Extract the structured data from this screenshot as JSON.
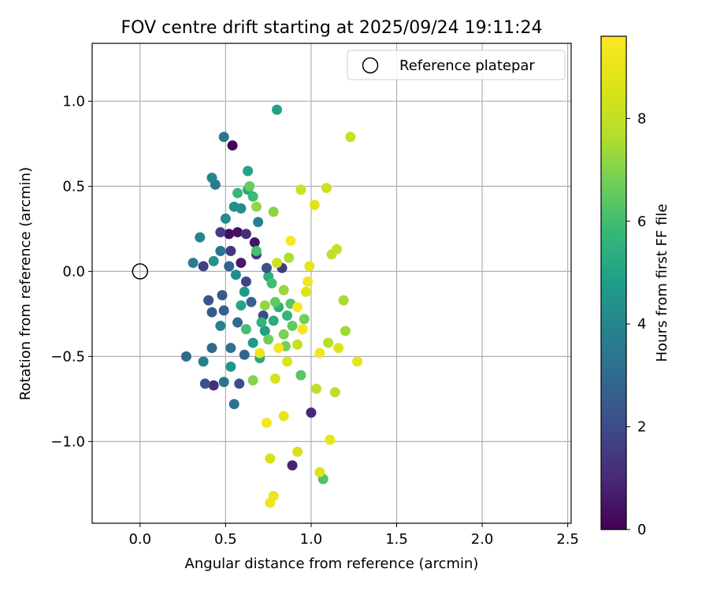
{
  "chart_data": {
    "type": "scatter",
    "title": "FOV centre drift starting at 2025/09/24 19:11:24",
    "xlabel": "Angular distance from reference (arcmin)",
    "ylabel": "Rotation from reference (arcmin)",
    "xlim": [
      -0.28,
      2.52
    ],
    "ylim": [
      -1.48,
      1.34
    ],
    "xticks": [
      0.0,
      0.5,
      1.0,
      1.5,
      2.0,
      2.5
    ],
    "xtick_labels": [
      "0.0",
      "0.5",
      "1.0",
      "1.5",
      "2.0",
      "2.5"
    ],
    "yticks": [
      -1.0,
      -0.5,
      0.0,
      0.5,
      1.0
    ],
    "ytick_labels": [
      "−1.0",
      "−0.5",
      "0.0",
      "0.5",
      "1.0"
    ],
    "grid": true,
    "legend": {
      "position": "top-right",
      "entries": [
        "Reference platepar"
      ]
    },
    "reference_point": {
      "x": 0.0,
      "y": 0.0
    },
    "colorbar": {
      "label": "Hours from first FF file",
      "range": [
        0,
        9.6
      ],
      "ticks": [
        0,
        2,
        4,
        6,
        8
      ],
      "tick_labels": [
        "0",
        "2",
        "4",
        "6",
        "8"
      ],
      "colormap": "viridis"
    },
    "points": [
      [
        0.54,
        0.74,
        0.1
      ],
      [
        0.52,
        0.22,
        0.3
      ],
      [
        0.57,
        0.23,
        0.4
      ],
      [
        0.67,
        0.17,
        0.5
      ],
      [
        0.59,
        0.05,
        0.6
      ],
      [
        0.89,
        -1.14,
        0.8
      ],
      [
        1.0,
        -0.83,
        1.0
      ],
      [
        0.43,
        -0.67,
        1.1
      ],
      [
        0.62,
        0.22,
        1.2
      ],
      [
        0.68,
        0.1,
        1.3
      ],
      [
        0.53,
        0.12,
        1.4
      ],
      [
        0.83,
        0.02,
        1.5
      ],
      [
        0.47,
        0.23,
        1.6
      ],
      [
        0.37,
        0.03,
        1.7
      ],
      [
        0.62,
        -0.06,
        1.8
      ],
      [
        0.72,
        -0.26,
        2.0
      ],
      [
        0.58,
        -0.66,
        2.1
      ],
      [
        0.38,
        -0.66,
        2.2
      ],
      [
        0.4,
        -0.17,
        2.3
      ],
      [
        0.48,
        -0.14,
        2.4
      ],
      [
        0.42,
        -0.24,
        2.5
      ],
      [
        0.49,
        -0.23,
        2.6
      ],
      [
        0.52,
        0.03,
        2.7
      ],
      [
        0.61,
        -0.49,
        2.8
      ],
      [
        0.42,
        -0.45,
        2.9
      ],
      [
        0.27,
        -0.5,
        3.0
      ],
      [
        0.55,
        -0.78,
        3.1
      ],
      [
        0.53,
        -0.45,
        3.2
      ],
      [
        0.49,
        -0.65,
        3.3
      ],
      [
        0.49,
        0.79,
        3.4
      ],
      [
        0.44,
        0.51,
        3.5
      ],
      [
        0.31,
        0.05,
        3.6
      ],
      [
        0.37,
        -0.53,
        3.7
      ],
      [
        0.47,
        -0.32,
        3.8
      ],
      [
        0.35,
        0.2,
        3.9
      ],
      [
        0.42,
        0.55,
        4.0
      ],
      [
        0.5,
        0.31,
        4.1
      ],
      [
        0.59,
        0.37,
        4.2
      ],
      [
        0.55,
        0.38,
        4.3
      ],
      [
        0.43,
        0.06,
        4.4
      ],
      [
        0.53,
        -0.56,
        4.5
      ],
      [
        0.61,
        -0.12,
        4.6
      ],
      [
        0.73,
        -0.35,
        4.8
      ],
      [
        0.8,
        0.95,
        4.9
      ],
      [
        0.63,
        0.59,
        5.0
      ],
      [
        0.63,
        0.48,
        5.1
      ],
      [
        0.7,
        -0.51,
        5.2
      ],
      [
        0.78,
        -0.29,
        5.3
      ],
      [
        0.75,
        -0.03,
        5.4
      ],
      [
        0.81,
        -0.21,
        5.5
      ],
      [
        0.86,
        -0.26,
        5.7
      ],
      [
        0.57,
        0.46,
        5.8
      ],
      [
        0.66,
        0.44,
        5.9
      ],
      [
        0.62,
        -0.34,
        6.0
      ],
      [
        0.68,
        0.12,
        6.1
      ],
      [
        1.07,
        -1.22,
        6.2
      ],
      [
        0.88,
        -0.19,
        6.3
      ],
      [
        0.94,
        -0.61,
        6.4
      ],
      [
        0.79,
        -0.18,
        6.5
      ],
      [
        0.64,
        0.5,
        6.6
      ],
      [
        0.75,
        -0.4,
        6.7
      ],
      [
        0.85,
        -0.44,
        6.8
      ],
      [
        0.84,
        -0.37,
        6.9
      ],
      [
        0.66,
        -0.64,
        7.0
      ],
      [
        0.78,
        0.35,
        7.1
      ],
      [
        0.68,
        0.38,
        7.2
      ],
      [
        0.84,
        -0.11,
        7.3
      ],
      [
        1.2,
        -0.35,
        7.4
      ],
      [
        1.19,
        -0.17,
        7.5
      ],
      [
        1.1,
        -0.42,
        7.7
      ],
      [
        1.14,
        -0.71,
        7.8
      ],
      [
        1.12,
        0.1,
        7.9
      ],
      [
        1.15,
        0.13,
        8.0
      ],
      [
        1.23,
        0.79,
        8.1
      ],
      [
        0.94,
        0.48,
        8.2
      ],
      [
        1.09,
        0.49,
        8.3
      ],
      [
        0.76,
        -1.1,
        8.4
      ],
      [
        0.92,
        -1.06,
        8.5
      ],
      [
        1.05,
        -1.18,
        8.6
      ],
      [
        0.97,
        -0.12,
        8.7
      ],
      [
        1.02,
        0.39,
        8.8
      ],
      [
        1.27,
        -0.53,
        8.9
      ],
      [
        1.11,
        -0.99,
        9.0
      ],
      [
        0.78,
        -1.32,
        9.1
      ],
      [
        0.76,
        -1.36,
        9.2
      ],
      [
        0.74,
        -0.89,
        9.3
      ],
      [
        0.81,
        -0.45,
        9.4
      ],
      [
        0.92,
        -0.21,
        9.5
      ],
      [
        0.88,
        0.18,
        9.5
      ],
      [
        0.95,
        -0.34,
        9.4
      ],
      [
        0.98,
        -0.06,
        9.3
      ],
      [
        1.05,
        -0.48,
        9.2
      ],
      [
        0.7,
        -0.48,
        9.1
      ],
      [
        0.84,
        -0.85,
        9.0
      ],
      [
        0.99,
        0.03,
        8.9
      ],
      [
        1.16,
        -0.45,
        8.7
      ],
      [
        0.86,
        -0.53,
        8.6
      ],
      [
        0.79,
        -0.63,
        8.5
      ],
      [
        0.8,
        0.05,
        8.3
      ],
      [
        0.92,
        -0.43,
        8.1
      ],
      [
        1.03,
        -0.69,
        7.9
      ],
      [
        0.87,
        0.08,
        7.6
      ],
      [
        0.73,
        -0.2,
        7.2
      ],
      [
        0.96,
        -0.28,
        6.8
      ],
      [
        0.89,
        -0.32,
        6.5
      ],
      [
        0.77,
        -0.07,
        6.0
      ],
      [
        0.71,
        -0.3,
        5.6
      ],
      [
        0.59,
        -0.2,
        5.0
      ],
      [
        0.66,
        -0.42,
        4.6
      ],
      [
        0.56,
        -0.02,
        4.2
      ],
      [
        0.69,
        0.29,
        3.8
      ],
      [
        0.47,
        0.12,
        3.4
      ],
      [
        0.57,
        -0.3,
        3.0
      ],
      [
        0.65,
        -0.18,
        2.6
      ],
      [
        0.74,
        0.02,
        2.2
      ]
    ]
  }
}
